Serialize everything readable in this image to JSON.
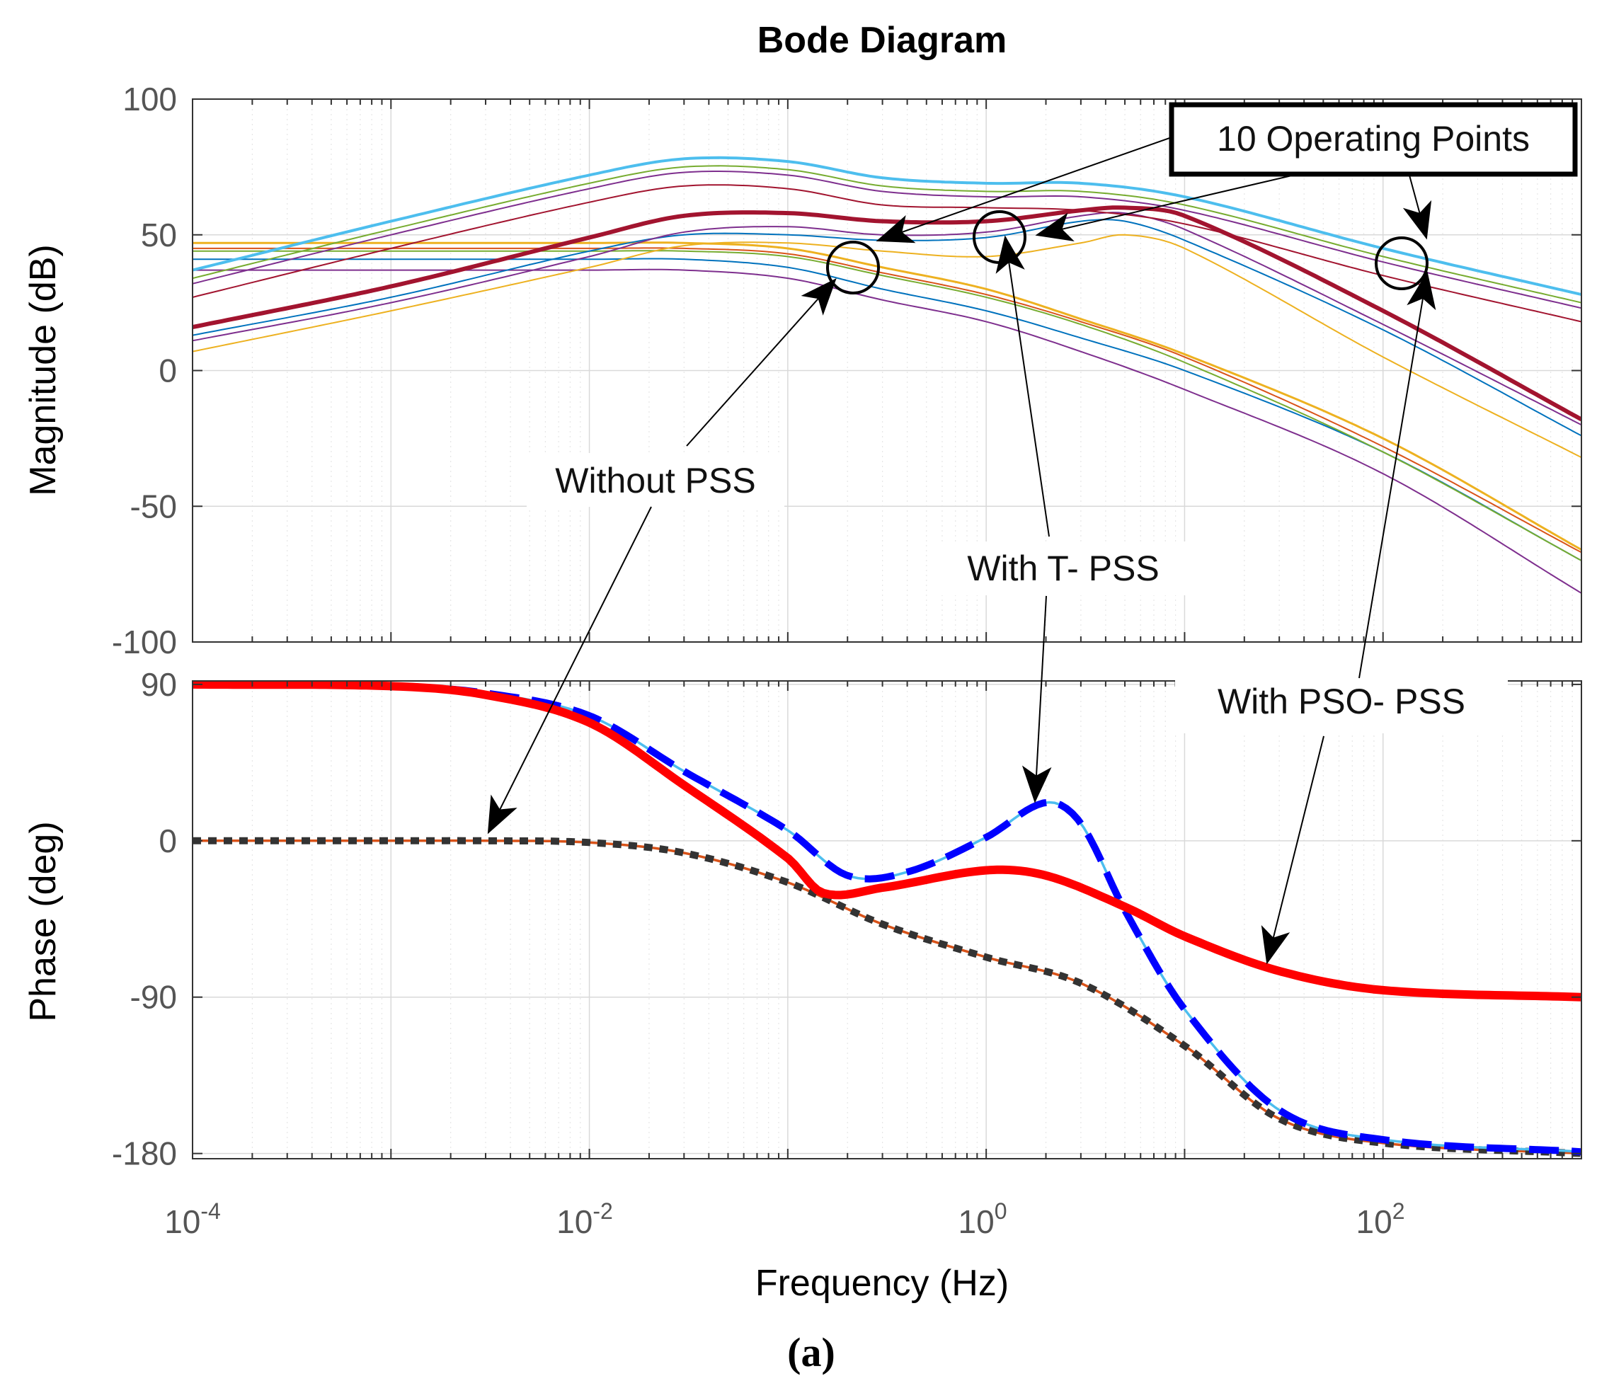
{
  "chart_data": {
    "title": "Bode Diagram",
    "caption": "(a)",
    "xlabel": "Frequency  (Hz)",
    "x_scale": "log",
    "xlim": [
      0.0001,
      1000
    ],
    "x_ticks": [
      {
        "value": 0.0001,
        "base": "10",
        "exp": "-4"
      },
      {
        "value": 0.01,
        "base": "10",
        "exp": "-2"
      },
      {
        "value": 1,
        "base": "10",
        "exp": "0"
      },
      {
        "value": 100,
        "base": "10",
        "exp": "2"
      }
    ],
    "grid": true,
    "magnitude": {
      "type": "line",
      "ylabel": "Magnitude (dB)",
      "ylim": [
        -100,
        100
      ],
      "y_ticks": [
        "100",
        "50",
        "0",
        "-50",
        "-100"
      ],
      "series": [
        {
          "name": "Without PSS (OP1)",
          "color": "#0072BD",
          "width": 2,
          "points": [
            [
              0.0001,
              41
            ],
            [
              0.01,
              41
            ],
            [
              0.03,
              41
            ],
            [
              0.1,
              38
            ],
            [
              0.3,
              30
            ],
            [
              1,
              22
            ],
            [
              3,
              12
            ],
            [
              10,
              0
            ],
            [
              100,
              -30
            ],
            [
              1000,
              -70
            ]
          ]
        },
        {
          "name": "Without PSS (OP2)",
          "color": "#D95319",
          "width": 2,
          "points": [
            [
              0.0001,
              45
            ],
            [
              0.01,
              45
            ],
            [
              0.03,
              45
            ],
            [
              0.1,
              43
            ],
            [
              0.3,
              36
            ],
            [
              1,
              28
            ],
            [
              3,
              18
            ],
            [
              10,
              5
            ],
            [
              100,
              -28
            ],
            [
              1000,
              -67
            ]
          ]
        },
        {
          "name": "Without PSS (OP3)",
          "color": "#EDB120",
          "width": 3,
          "points": [
            [
              0.0001,
              47
            ],
            [
              0.01,
              47
            ],
            [
              0.03,
              47
            ],
            [
              0.1,
              45
            ],
            [
              0.3,
              38
            ],
            [
              1,
              30
            ],
            [
              3,
              19
            ],
            [
              10,
              6
            ],
            [
              100,
              -25
            ],
            [
              1000,
              -66
            ]
          ]
        },
        {
          "name": "Without PSS (OP4)",
          "color": "#7E2F8E",
          "width": 2,
          "points": [
            [
              0.0001,
              37
            ],
            [
              0.01,
              37
            ],
            [
              0.03,
              37
            ],
            [
              0.1,
              34
            ],
            [
              0.3,
              26
            ],
            [
              1,
              18
            ],
            [
              3,
              7
            ],
            [
              10,
              -7
            ],
            [
              100,
              -38
            ],
            [
              1000,
              -82
            ]
          ]
        },
        {
          "name": "Without PSS (OP5)",
          "color": "#77AC30",
          "width": 2,
          "points": [
            [
              0.0001,
              44
            ],
            [
              0.01,
              44
            ],
            [
              0.03,
              44
            ],
            [
              0.1,
              42
            ],
            [
              0.3,
              35
            ],
            [
              1,
              27
            ],
            [
              3,
              17
            ],
            [
              10,
              3
            ],
            [
              100,
              -30
            ],
            [
              1000,
              -70
            ]
          ]
        },
        {
          "name": "With T-PSS (OP1)",
          "color": "#0072BD",
          "width": 2,
          "points": [
            [
              0.0001,
              13
            ],
            [
              0.001,
              27
            ],
            [
              0.01,
              44
            ],
            [
              0.03,
              50
            ],
            [
              0.1,
              50
            ],
            [
              0.3,
              48
            ],
            [
              1,
              49
            ],
            [
              3,
              55
            ],
            [
              5,
              55
            ],
            [
              10,
              48
            ],
            [
              100,
              15
            ],
            [
              1000,
              -24
            ]
          ]
        },
        {
          "name": "With T-PSS (OP2)",
          "color": "#EDB120",
          "width": 2,
          "points": [
            [
              0.0001,
              7
            ],
            [
              0.001,
              22
            ],
            [
              0.01,
              38
            ],
            [
              0.03,
              46
            ],
            [
              0.1,
              47
            ],
            [
              0.3,
              44
            ],
            [
              1,
              42
            ],
            [
              3,
              47
            ],
            [
              5,
              50
            ],
            [
              10,
              45
            ],
            [
              100,
              5
            ],
            [
              1000,
              -32
            ]
          ]
        },
        {
          "name": "With T-PSS (OP3)",
          "color": "#7E2F8E",
          "width": 2,
          "points": [
            [
              0.0001,
              11
            ],
            [
              0.001,
              25
            ],
            [
              0.01,
              42
            ],
            [
              0.03,
              51
            ],
            [
              0.1,
              53
            ],
            [
              0.3,
              50
            ],
            [
              1,
              51
            ],
            [
              3,
              57
            ],
            [
              5,
              58
            ],
            [
              10,
              52
            ],
            [
              100,
              17
            ],
            [
              1000,
              -20
            ]
          ]
        },
        {
          "name": "With T-PSS (OP4)",
          "color": "#A2142F",
          "width": 6,
          "points": [
            [
              0.0001,
              16
            ],
            [
              0.001,
              31
            ],
            [
              0.01,
              49
            ],
            [
              0.03,
              57
            ],
            [
              0.1,
              58
            ],
            [
              0.3,
              55
            ],
            [
              1,
              55
            ],
            [
              3,
              59
            ],
            [
              5,
              60
            ],
            [
              10,
              57
            ],
            [
              100,
              22
            ],
            [
              1000,
              -18
            ]
          ]
        },
        {
          "name": "With PSO-PSS (OP1)",
          "color": "#4DBEEE",
          "width": 4,
          "points": [
            [
              0.0001,
              37
            ],
            [
              0.001,
              55
            ],
            [
              0.01,
              72
            ],
            [
              0.03,
              78
            ],
            [
              0.1,
              77
            ],
            [
              0.3,
              71
            ],
            [
              1,
              69
            ],
            [
              3,
              69
            ],
            [
              10,
              64
            ],
            [
              100,
              45
            ],
            [
              1000,
              28
            ]
          ]
        },
        {
          "name": "With PSO-PSS (OP2)",
          "color": "#77AC30",
          "width": 2,
          "points": [
            [
              0.0001,
              34
            ],
            [
              0.001,
              52
            ],
            [
              0.01,
              69
            ],
            [
              0.03,
              75
            ],
            [
              0.1,
              74
            ],
            [
              0.3,
              68
            ],
            [
              1,
              66
            ],
            [
              3,
              66
            ],
            [
              10,
              61
            ],
            [
              100,
              42
            ],
            [
              1000,
              25
            ]
          ]
        },
        {
          "name": "With PSO-PSS (OP3)",
          "color": "#7E2F8E",
          "width": 2,
          "points": [
            [
              0.0001,
              32
            ],
            [
              0.001,
              50
            ],
            [
              0.01,
              67
            ],
            [
              0.03,
              73
            ],
            [
              0.1,
              72
            ],
            [
              0.3,
              66
            ],
            [
              1,
              64
            ],
            [
              3,
              64
            ],
            [
              10,
              59
            ],
            [
              100,
              40
            ],
            [
              1000,
              23
            ]
          ]
        },
        {
          "name": "With PSO-PSS (OP4)",
          "color": "#A2142F",
          "width": 2,
          "points": [
            [
              0.0001,
              27
            ],
            [
              0.001,
              45
            ],
            [
              0.01,
              62
            ],
            [
              0.03,
              68
            ],
            [
              0.1,
              67
            ],
            [
              0.3,
              61
            ],
            [
              1,
              60
            ],
            [
              3,
              59
            ],
            [
              10,
              54
            ],
            [
              100,
              35
            ],
            [
              1000,
              18
            ]
          ]
        }
      ]
    },
    "phase": {
      "type": "line",
      "ylabel": "Phase (deg)",
      "ylim": [
        -183,
        92
      ],
      "y_ticks": [
        "90",
        "0",
        "-90",
        "-180"
      ],
      "series": [
        {
          "name": "Without PSS",
          "color": "#333333",
          "width": 10,
          "dash": "12,10",
          "underlay": "#D95319",
          "points": [
            [
              0.0001,
              0
            ],
            [
              0.001,
              0
            ],
            [
              0.003,
              0
            ],
            [
              0.01,
              -1
            ],
            [
              0.03,
              -7
            ],
            [
              0.1,
              -24
            ],
            [
              0.3,
              -48
            ],
            [
              1,
              -67
            ],
            [
              3,
              -82
            ],
            [
              10,
              -118
            ],
            [
              30,
              -160
            ],
            [
              100,
              -174
            ],
            [
              1000,
              -180
            ]
          ]
        },
        {
          "name": "With T-PSS",
          "color": "#0000FF",
          "width": 10,
          "dash": "42,18",
          "underlay": "#4DBEEE",
          "points": [
            [
              0.0001,
              90
            ],
            [
              0.001,
              89
            ],
            [
              0.003,
              85
            ],
            [
              0.01,
              72
            ],
            [
              0.03,
              40
            ],
            [
              0.1,
              6
            ],
            [
              0.2,
              -20
            ],
            [
              0.4,
              -18
            ],
            [
              1,
              2
            ],
            [
              2,
              22
            ],
            [
              3,
              10
            ],
            [
              5,
              -40
            ],
            [
              10,
              -97
            ],
            [
              30,
              -155
            ],
            [
              100,
              -172
            ],
            [
              1000,
              -179
            ]
          ]
        },
        {
          "name": "With PSO-PSS",
          "color": "#FF0000",
          "width": 12,
          "points": [
            [
              0.0001,
              90
            ],
            [
              0.001,
              89
            ],
            [
              0.003,
              84
            ],
            [
              0.01,
              68
            ],
            [
              0.03,
              32
            ],
            [
              0.1,
              -10
            ],
            [
              0.15,
              -30
            ],
            [
              0.3,
              -27
            ],
            [
              1,
              -17
            ],
            [
              2,
              -20
            ],
            [
              5,
              -38
            ],
            [
              10,
              -55
            ],
            [
              30,
              -75
            ],
            [
              100,
              -86
            ],
            [
              1000,
              -90
            ]
          ]
        }
      ]
    },
    "annotations": {
      "operating_points": "10 Operating Points",
      "without_pss": "Without PSS",
      "with_tpss": "With T- PSS",
      "with_psopss": "With PSO- PSS"
    }
  }
}
